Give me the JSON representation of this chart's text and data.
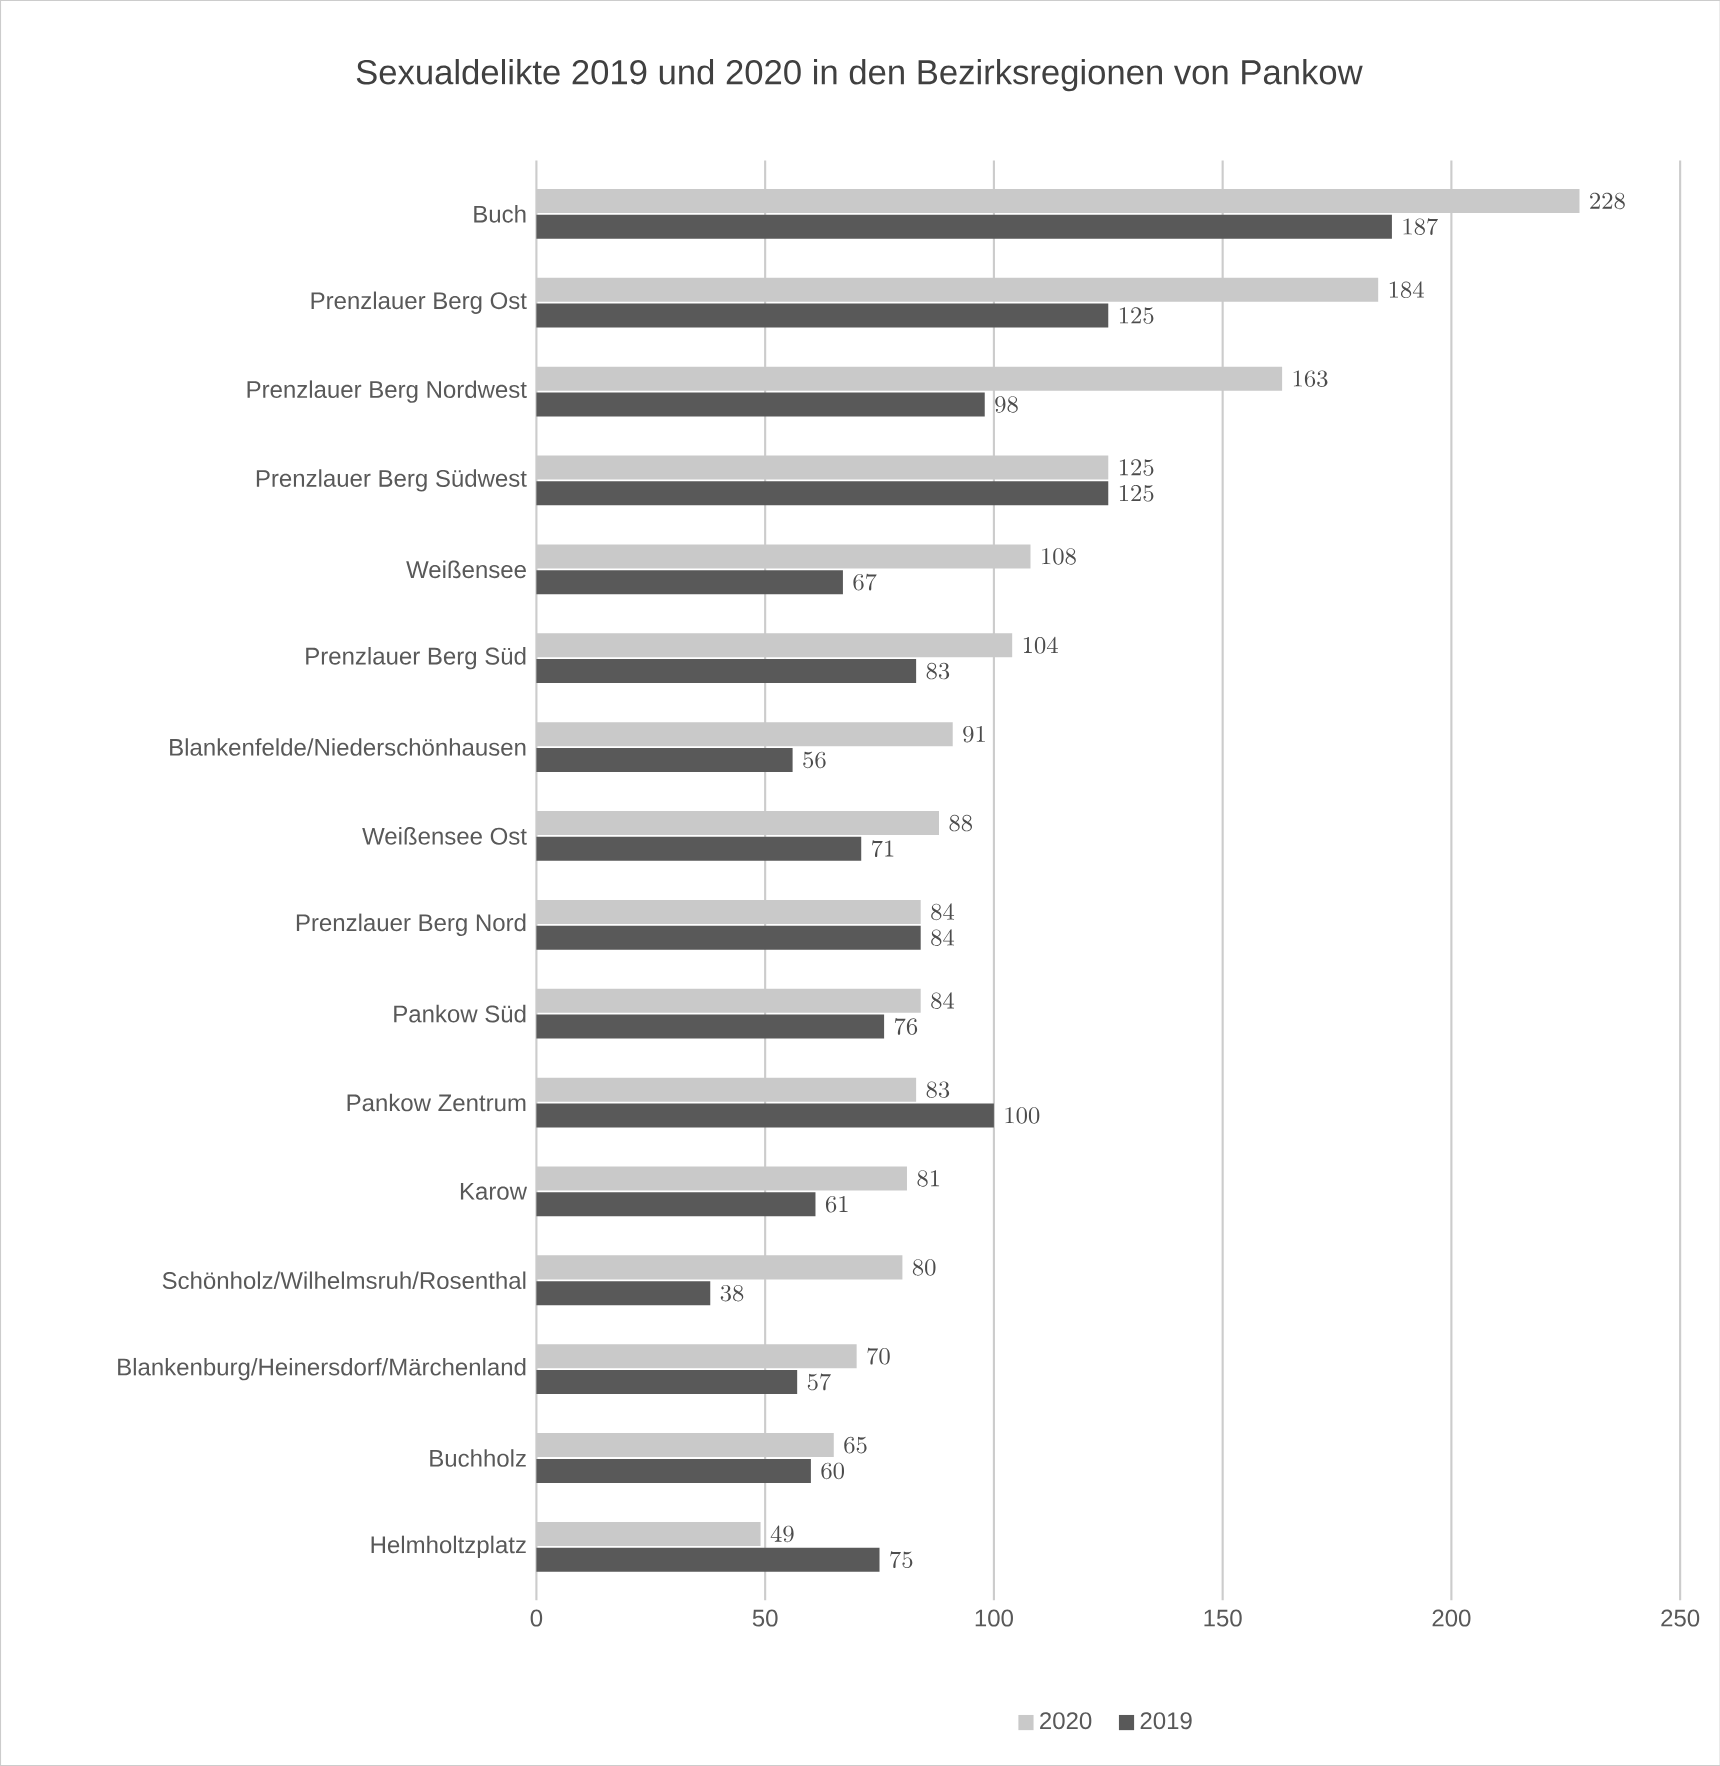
{
  "chart_data": {
    "type": "bar",
    "orientation": "horizontal",
    "title": "Sexualdelikte 2019 und 2020 in den Bezirksregionen von Pankow",
    "categories": [
      "Buch",
      "Prenzlauer Berg Ost",
      "Prenzlauer Berg Nordwest",
      "Prenzlauer Berg Südwest",
      "Weißensee",
      "Prenzlauer Berg Süd",
      "Blankenfelde/Niederschönhausen",
      "Weißensee Ost",
      "Prenzlauer Berg Nord",
      "Pankow Süd",
      "Pankow Zentrum",
      "Karow",
      "Schönholz/Wilhelmsruh/Rosenthal",
      "Blankenburg/Heinersdorf/Märchenland",
      "Buchholz",
      "Helmholtzplatz"
    ],
    "series": [
      {
        "name": "2020",
        "color": "#c9c9c9",
        "values": [
          228,
          184,
          163,
          125,
          108,
          104,
          91,
          88,
          84,
          84,
          83,
          81,
          80,
          70,
          65,
          49
        ]
      },
      {
        "name": "2019",
        "color": "#595959",
        "values": [
          187,
          125,
          98,
          125,
          67,
          83,
          56,
          71,
          84,
          76,
          100,
          61,
          38,
          57,
          60,
          75
        ]
      }
    ],
    "xlim": [
      0,
      250
    ],
    "xticks": [
      0,
      50,
      100,
      150,
      200,
      250
    ],
    "grid": "x",
    "legend": "bottom",
    "data_labels": true
  }
}
